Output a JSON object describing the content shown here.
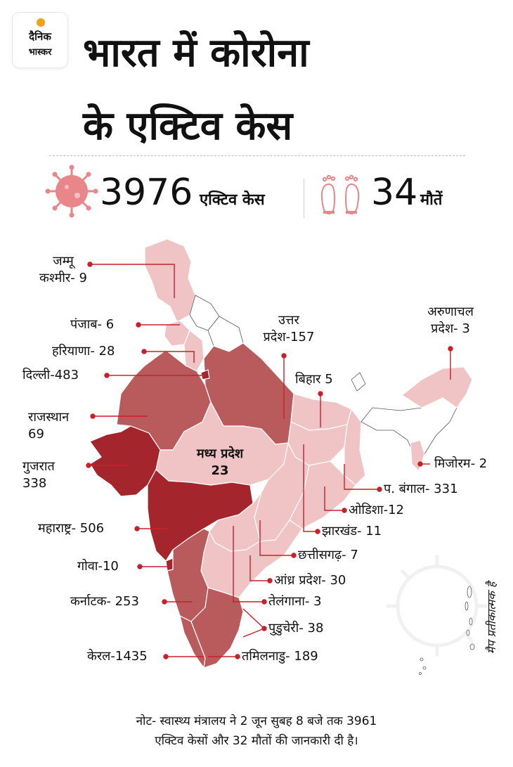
{
  "logo": {
    "line1": "दैनिक",
    "line2": "भास्कर"
  },
  "title": {
    "line1": "भारत में कोरोना",
    "line2": "के एक्टिव केस"
  },
  "stats": {
    "active_value": "3976",
    "active_label": "एक्टिव केस",
    "deaths_value": "34",
    "deaths_label": "मौतें"
  },
  "colors": {
    "dark": "#a4262c",
    "medium": "#b95a5c",
    "light": "#f0c4c4",
    "line": "#c8202a"
  },
  "states": [
    {
      "id": "jammu-kashmir",
      "text": "जम्मू\nकश्मीर- 9"
    },
    {
      "id": "punjab",
      "text": "पंजाब- 6"
    },
    {
      "id": "haryana",
      "text": "हरियाणा- 28"
    },
    {
      "id": "delhi",
      "text": "दिल्ली-483"
    },
    {
      "id": "rajasthan",
      "text": "राजस्थान\n69"
    },
    {
      "id": "gujarat",
      "text": "गुजरात\n338"
    },
    {
      "id": "madhya-pradesh",
      "text": "मध्य प्रदेश\n23"
    },
    {
      "id": "uttar-pradesh",
      "text": "उत्तर\nप्रदेश-157"
    },
    {
      "id": "bihar",
      "text": "बिहार 5"
    },
    {
      "id": "arunachal-pradesh",
      "text": "अरुणाचल\nप्रदेश- 3"
    },
    {
      "id": "mizoram",
      "text": "मिजोरम- 2"
    },
    {
      "id": "west-bengal",
      "text": "प. बंगाल- 331"
    },
    {
      "id": "odisha",
      "text": "ओडिशा-12"
    },
    {
      "id": "jharkhand",
      "text": "झारखंड- 11"
    },
    {
      "id": "chhattisgarh",
      "text": "छत्तीसगढ़- 7"
    },
    {
      "id": "andhra-pradesh",
      "text": "आंध्र प्रदेश- 30"
    },
    {
      "id": "telangana",
      "text": "तेलंगाना- 3"
    },
    {
      "id": "puducherry",
      "text": "पुडुचेरी- 38"
    },
    {
      "id": "maharashtra",
      "text": "महाराष्ट्र- 506"
    },
    {
      "id": "goa",
      "text": "गोवा-10"
    },
    {
      "id": "karnataka",
      "text": "कर्नाटक- 253"
    },
    {
      "id": "kerala",
      "text": "केरल-1435"
    },
    {
      "id": "tamil-nadu",
      "text": "तमिलनाडु- 189"
    }
  ],
  "side_note": "मैप प्रतीकात्मक है",
  "note": "नोट- स्वास्थ्य मंत्रालय ने 2 जून सुबह 8 बजे तक 3961\nएक्टिव केसों और 32 मौतों की जानकारी दी है।"
}
